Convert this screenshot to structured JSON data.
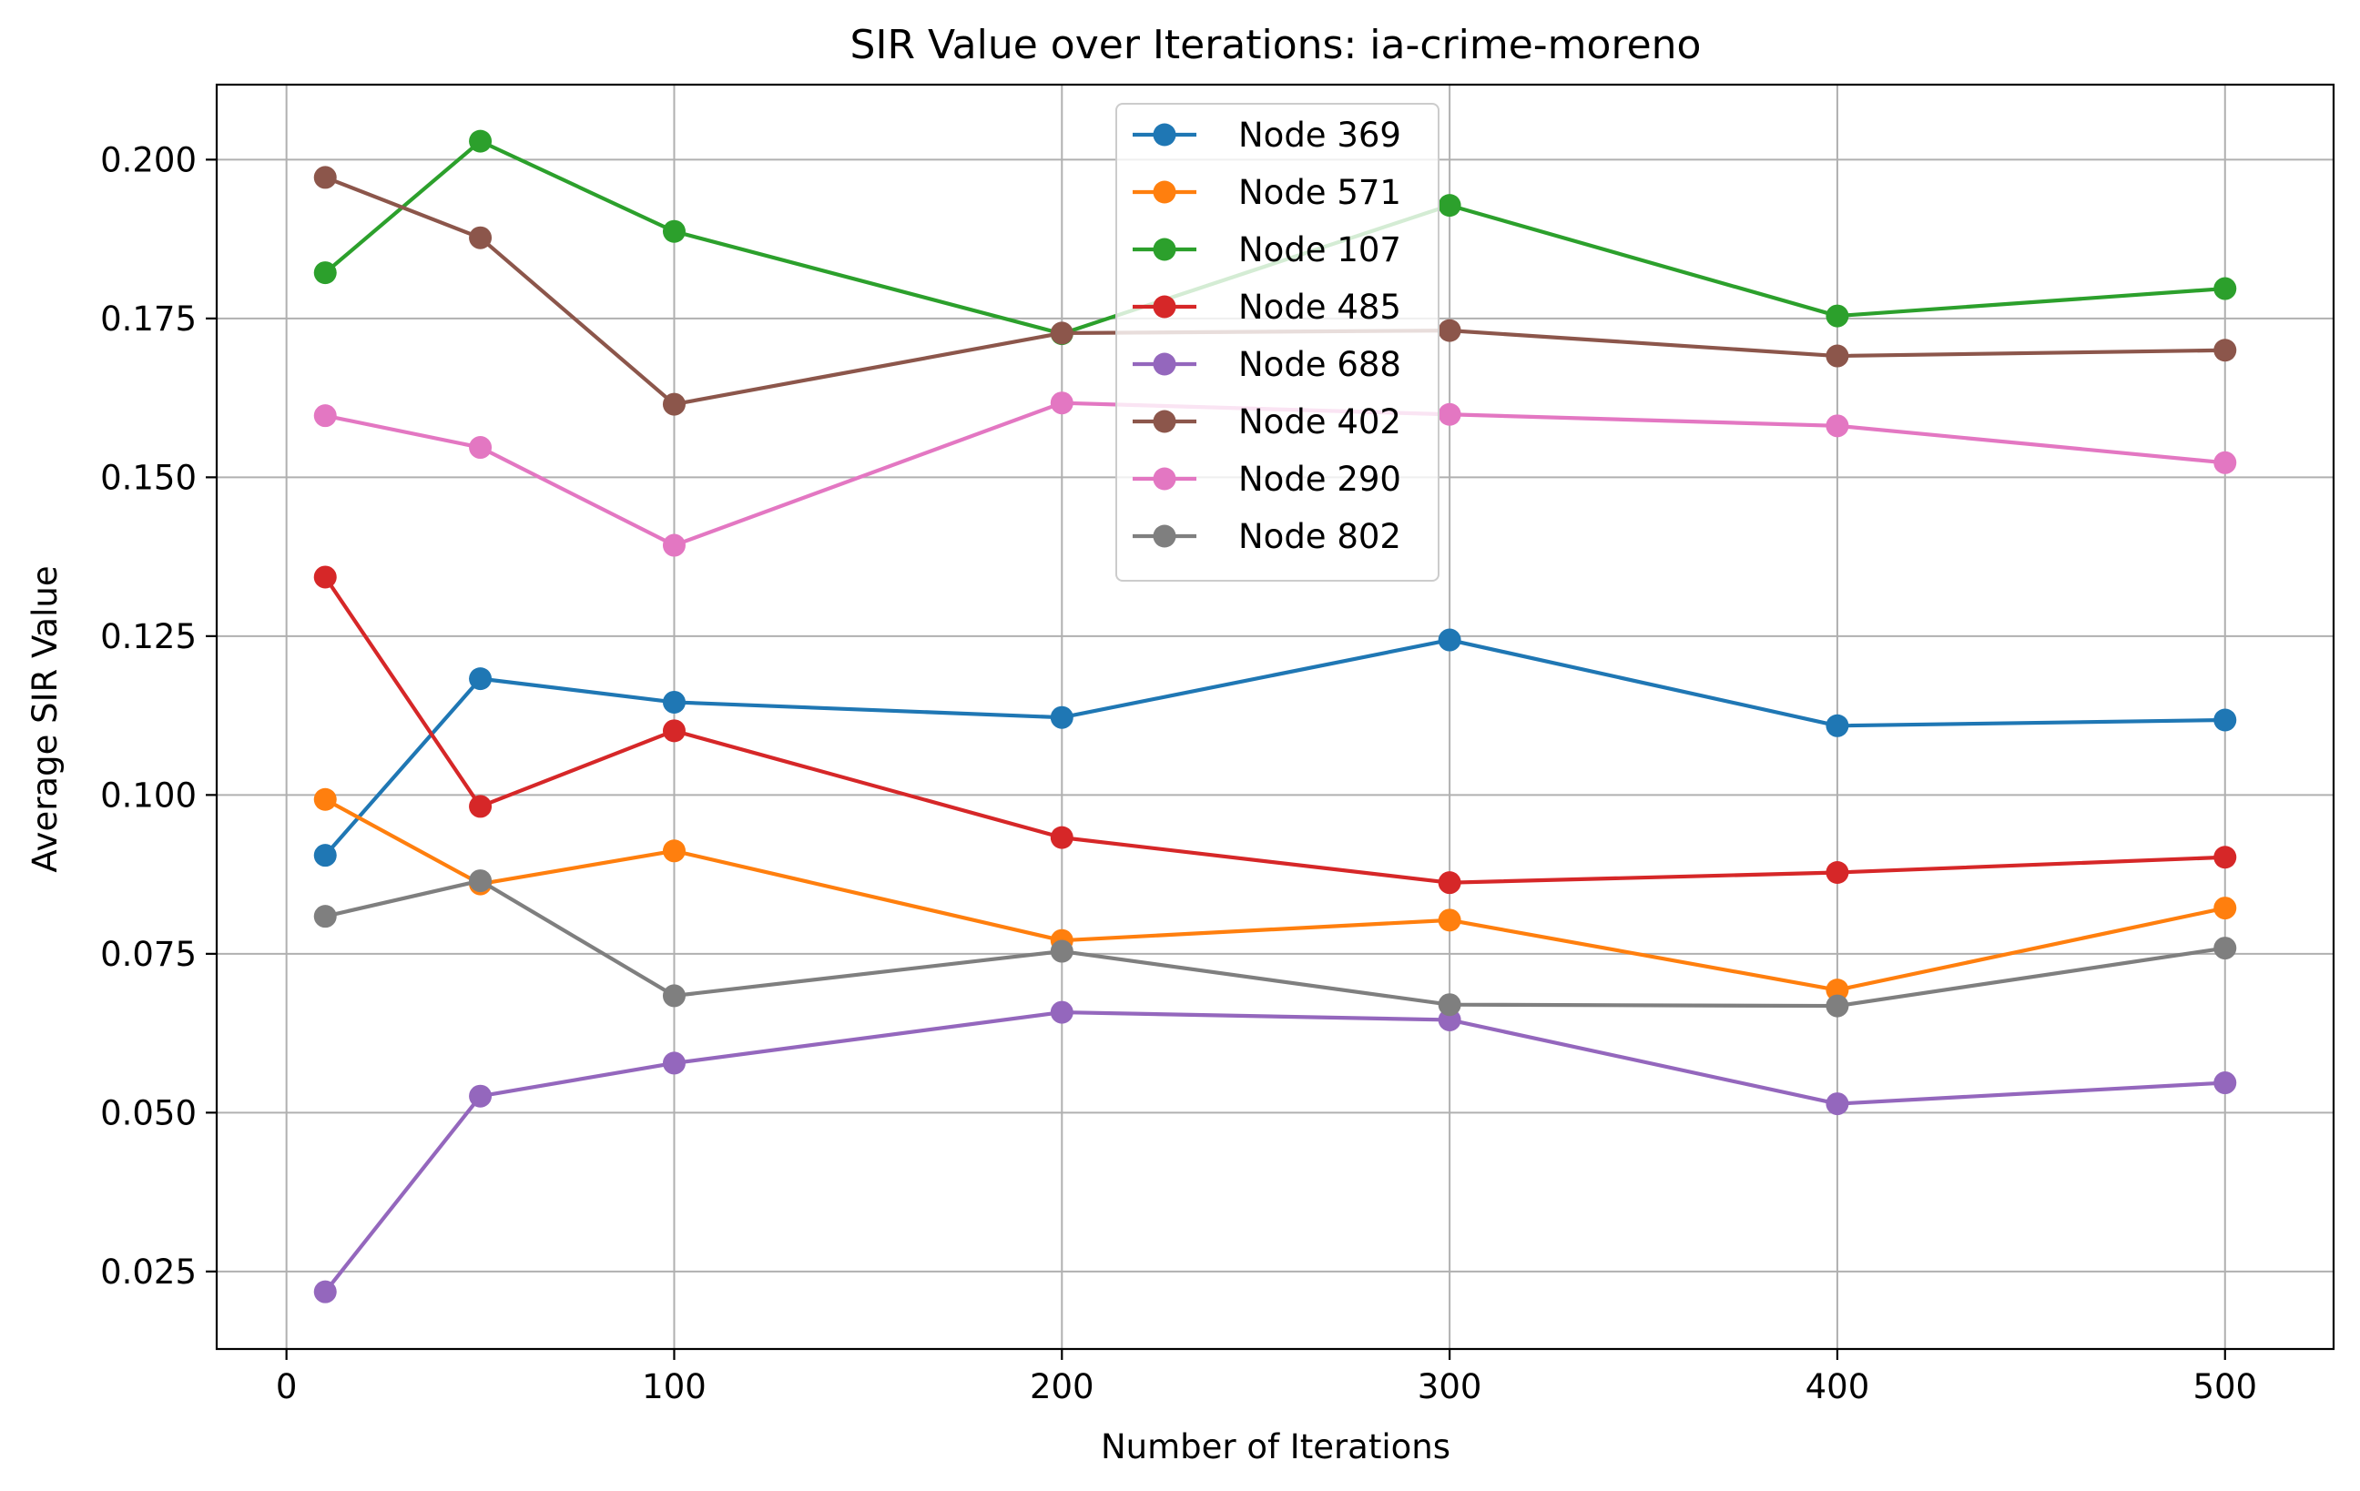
{
  "chart_data": {
    "type": "line",
    "title": "SIR Value over Iterations: ia-crime-moreno",
    "xlabel": "Number of Iterations",
    "ylabel": "Average SIR Value",
    "x": [
      10,
      50,
      100,
      200,
      300,
      400,
      500
    ],
    "xlim": [
      -18,
      528
    ],
    "ylim": [
      0.0128,
      0.2118
    ],
    "xticks": [
      0,
      100,
      200,
      300,
      400,
      500
    ],
    "xtick_labels": [
      "0",
      "100",
      "200",
      "300",
      "400",
      "500"
    ],
    "yticks": [
      0.025,
      0.05,
      0.075,
      0.1,
      0.125,
      0.15,
      0.175,
      0.2
    ],
    "ytick_labels": [
      "0.025",
      "0.050",
      "0.075",
      "0.100",
      "0.125",
      "0.150",
      "0.175",
      "0.200"
    ],
    "grid": true,
    "legend_position": "top-center",
    "series": [
      {
        "name": "Node 369",
        "color": "#1f77b4",
        "values": [
          0.0905,
          0.1183,
          0.1146,
          0.1122,
          0.1244,
          0.1109,
          0.1118
        ]
      },
      {
        "name": "Node 571",
        "color": "#ff7f0e",
        "values": [
          0.0993,
          0.086,
          0.0912,
          0.0771,
          0.0803,
          0.0693,
          0.0822
        ]
      },
      {
        "name": "Node 107",
        "color": "#2ca02c",
        "values": [
          0.1822,
          0.2029,
          0.1887,
          0.1726,
          0.1928,
          0.1754,
          0.1797
        ]
      },
      {
        "name": "Node 485",
        "color": "#d62728",
        "values": [
          0.1343,
          0.0982,
          0.1101,
          0.0933,
          0.0862,
          0.0878,
          0.0902
        ]
      },
      {
        "name": "Node 688",
        "color": "#9467bd",
        "values": [
          0.0218,
          0.0526,
          0.0578,
          0.0658,
          0.0646,
          0.0514,
          0.0547
        ]
      },
      {
        "name": "Node 402",
        "color": "#8c564b",
        "values": [
          0.1972,
          0.1877,
          0.1615,
          0.1727,
          0.1731,
          0.1691,
          0.17
        ]
      },
      {
        "name": "Node 290",
        "color": "#e377c2",
        "values": [
          0.1597,
          0.1547,
          0.1393,
          0.1617,
          0.1599,
          0.1581,
          0.1523
        ]
      },
      {
        "name": "Node 802",
        "color": "#7f7f7f",
        "values": [
          0.0809,
          0.0865,
          0.0684,
          0.0754,
          0.067,
          0.0668,
          0.0759
        ]
      }
    ]
  }
}
